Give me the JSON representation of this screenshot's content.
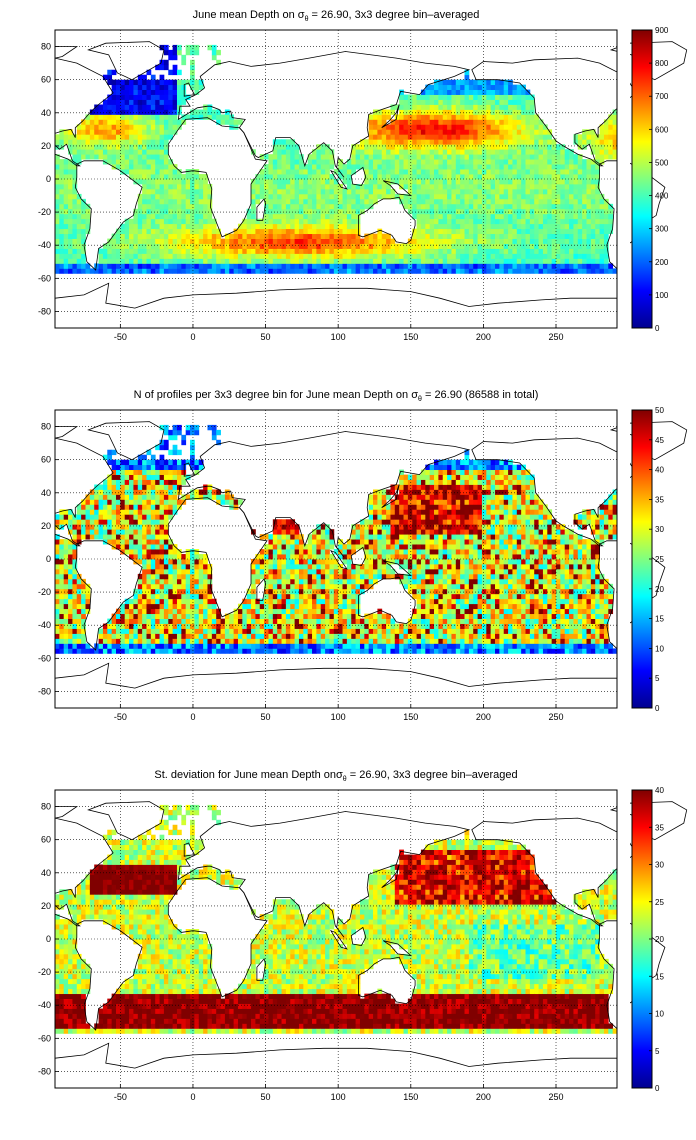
{
  "palette": [
    "#00008f",
    "#0000ff",
    "#0080ff",
    "#00ffff",
    "#80ff80",
    "#ffff00",
    "#ff8000",
    "#ff0000",
    "#800000"
  ],
  "land_color": "#ffffff",
  "chart_data": [
    {
      "type": "heatmap",
      "title": {
        "prefix": "June mean Depth on ",
        "symbol": "σ",
        "subscript": "θ",
        "suffix": " = 26.90, 3x3 degree bin–averaged"
      },
      "xlim": [
        -95,
        292
      ],
      "ylim": [
        -90,
        90
      ],
      "xticks": [
        -50,
        0,
        50,
        100,
        150,
        200,
        250
      ],
      "yticks": [
        -80,
        -60,
        -40,
        -20,
        0,
        20,
        40,
        60,
        80
      ],
      "colorbar": {
        "min": 0,
        "max": 900,
        "ticks": [
          0,
          100,
          200,
          300,
          400,
          500,
          600,
          700,
          800,
          900
        ]
      },
      "grid": true,
      "field": "depth"
    },
    {
      "type": "heatmap",
      "title": {
        "prefix": "N of profiles per 3x3 degree bin for June mean Depth on ",
        "symbol": "σ",
        "subscript": "θ",
        "suffix": " = 26.90 (86588 in total)"
      },
      "xlim": [
        -95,
        292
      ],
      "ylim": [
        -90,
        90
      ],
      "xticks": [
        -50,
        0,
        50,
        100,
        150,
        200,
        250
      ],
      "yticks": [
        -80,
        -60,
        -40,
        -20,
        0,
        20,
        40,
        60,
        80
      ],
      "colorbar": {
        "min": 0,
        "max": 50,
        "ticks": [
          0,
          5,
          10,
          15,
          20,
          25,
          30,
          35,
          40,
          45,
          50
        ]
      },
      "grid": true,
      "field": "count"
    },
    {
      "type": "heatmap",
      "title": {
        "prefix": "St. deviation for June mean Depth on",
        "symbol": "σ",
        "subscript": "θ",
        "suffix": " = 26.90, 3x3 degree bin–averaged"
      },
      "xlim": [
        -95,
        292
      ],
      "ylim": [
        -90,
        90
      ],
      "xticks": [
        -50,
        0,
        50,
        100,
        150,
        200,
        250
      ],
      "yticks": [
        -80,
        -60,
        -40,
        -20,
        0,
        20,
        40,
        60,
        80
      ],
      "colorbar": {
        "min": 0,
        "max": 40,
        "ticks": [
          0,
          5,
          10,
          15,
          20,
          25,
          30,
          35,
          40
        ]
      },
      "grid": true,
      "field": "std"
    }
  ]
}
